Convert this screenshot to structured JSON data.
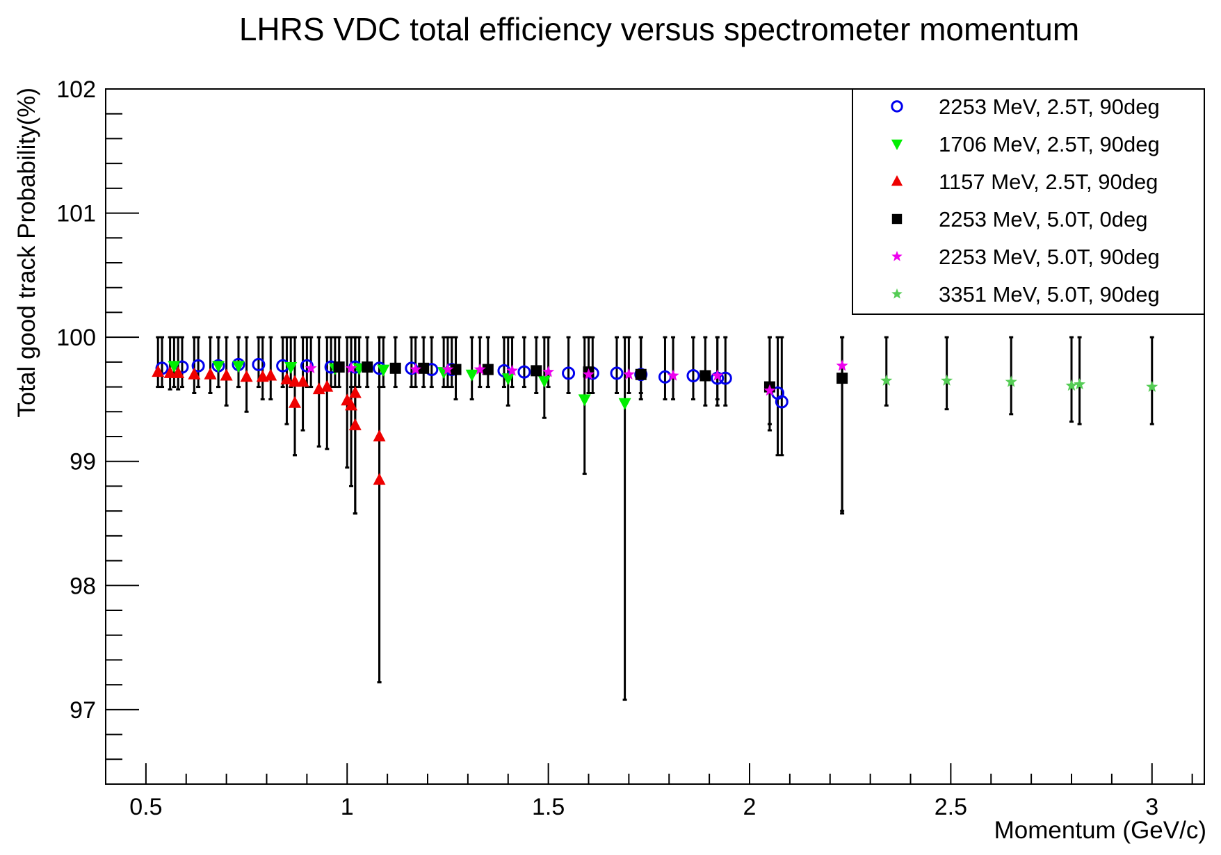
{
  "chart_data": {
    "type": "scatter",
    "title": "LHRS VDC total efficiency versus spectrometer momentum",
    "xlabel": "Momentum (GeV/c)",
    "ylabel": "Total good track Probability(%)",
    "xlim": [
      0.4,
      3.13
    ],
    "ylim": [
      96.4,
      102.0
    ],
    "x_ticks": [
      "0.5",
      "1",
      "1.5",
      "2",
      "2.5",
      "3"
    ],
    "y_ticks": [
      "97",
      "98",
      "99",
      "100",
      "101",
      "102"
    ],
    "grid": false,
    "legend_position": "top-right",
    "series": [
      {
        "name": "2253 MeV, 2.5T, 90deg",
        "marker": "open-circle",
        "color": "#0000ee",
        "points": [
          {
            "x": 0.54,
            "y": 99.75,
            "lo": 99.6,
            "hi": 100.0
          },
          {
            "x": 0.59,
            "y": 99.76,
            "lo": 99.6,
            "hi": 100.0
          },
          {
            "x": 0.63,
            "y": 99.77,
            "lo": 99.6,
            "hi": 100.0
          },
          {
            "x": 0.68,
            "y": 99.77,
            "lo": 99.6,
            "hi": 100.0
          },
          {
            "x": 0.73,
            "y": 99.78,
            "lo": 99.6,
            "hi": 100.0
          },
          {
            "x": 0.78,
            "y": 99.78,
            "lo": 99.6,
            "hi": 100.0
          },
          {
            "x": 0.84,
            "y": 99.77,
            "lo": 99.6,
            "hi": 100.0
          },
          {
            "x": 0.9,
            "y": 99.77,
            "lo": 99.6,
            "hi": 100.0
          },
          {
            "x": 0.96,
            "y": 99.76,
            "lo": 99.6,
            "hi": 100.0
          },
          {
            "x": 1.02,
            "y": 99.76,
            "lo": 99.6,
            "hi": 100.0
          },
          {
            "x": 1.08,
            "y": 99.75,
            "lo": 99.6,
            "hi": 100.0
          },
          {
            "x": 1.16,
            "y": 99.75,
            "lo": 99.6,
            "hi": 100.0
          },
          {
            "x": 1.21,
            "y": 99.74,
            "lo": 99.6,
            "hi": 100.0
          },
          {
            "x": 1.26,
            "y": 99.74,
            "lo": 99.6,
            "hi": 100.0
          },
          {
            "x": 1.39,
            "y": 99.73,
            "lo": 99.6,
            "hi": 100.0
          },
          {
            "x": 1.44,
            "y": 99.72,
            "lo": 99.6,
            "hi": 100.0
          },
          {
            "x": 1.55,
            "y": 99.71,
            "lo": 99.55,
            "hi": 100.0
          },
          {
            "x": 1.61,
            "y": 99.71,
            "lo": 99.55,
            "hi": 100.0
          },
          {
            "x": 1.67,
            "y": 99.71,
            "lo": 99.55,
            "hi": 100.0
          },
          {
            "x": 1.73,
            "y": 99.7,
            "lo": 99.55,
            "hi": 100.0
          },
          {
            "x": 1.79,
            "y": 99.68,
            "lo": 99.5,
            "hi": 100.0
          },
          {
            "x": 1.86,
            "y": 99.69,
            "lo": 99.5,
            "hi": 100.0
          },
          {
            "x": 1.92,
            "y": 99.67,
            "lo": 99.45,
            "hi": 100.0
          },
          {
            "x": 1.94,
            "y": 99.67,
            "lo": 99.45,
            "hi": 100.0
          },
          {
            "x": 2.07,
            "y": 99.55,
            "lo": 99.05,
            "hi": 100.0
          },
          {
            "x": 2.08,
            "y": 99.48,
            "lo": 99.05,
            "hi": 100.0
          }
        ]
      },
      {
        "name": "1706 MeV, 2.5T, 90deg",
        "marker": "triangle-down",
        "color": "#00ee00",
        "points": [
          {
            "x": 0.57,
            "y": 99.77,
            "lo": 99.6,
            "hi": 100.0
          },
          {
            "x": 0.68,
            "y": 99.77,
            "lo": 99.6,
            "hi": 100.0
          },
          {
            "x": 0.73,
            "y": 99.77,
            "lo": 99.6,
            "hi": 100.0
          },
          {
            "x": 0.86,
            "y": 99.76,
            "lo": 99.6,
            "hi": 100.0
          },
          {
            "x": 0.97,
            "y": 99.75,
            "lo": 99.6,
            "hi": 100.0
          },
          {
            "x": 1.03,
            "y": 99.75,
            "lo": 99.6,
            "hi": 100.0
          },
          {
            "x": 1.09,
            "y": 99.74,
            "lo": 99.6,
            "hi": 100.0
          },
          {
            "x": 1.24,
            "y": 99.72,
            "lo": 99.6,
            "hi": 100.0
          },
          {
            "x": 1.31,
            "y": 99.7,
            "lo": 99.5,
            "hi": 100.0
          },
          {
            "x": 1.4,
            "y": 99.67,
            "lo": 99.45,
            "hi": 100.0
          },
          {
            "x": 1.49,
            "y": 99.65,
            "lo": 99.35,
            "hi": 100.0
          },
          {
            "x": 1.59,
            "y": 99.5,
            "lo": 98.9,
            "hi": 100.0
          },
          {
            "x": 1.69,
            "y": 99.47,
            "lo": 97.08,
            "hi": 100.0
          }
        ]
      },
      {
        "name": "1157 MeV, 2.5T, 90deg",
        "marker": "triangle-up",
        "color": "#ee0000",
        "points": [
          {
            "x": 0.53,
            "y": 99.72,
            "lo": 99.6,
            "hi": 100.0
          },
          {
            "x": 0.56,
            "y": 99.71,
            "lo": 99.58,
            "hi": 100.0
          },
          {
            "x": 0.58,
            "y": 99.71,
            "lo": 99.58,
            "hi": 100.0
          },
          {
            "x": 0.62,
            "y": 99.7,
            "lo": 99.55,
            "hi": 100.0
          },
          {
            "x": 0.66,
            "y": 99.7,
            "lo": 99.55,
            "hi": 100.0
          },
          {
            "x": 0.7,
            "y": 99.69,
            "lo": 99.45,
            "hi": 100.0
          },
          {
            "x": 0.75,
            "y": 99.68,
            "lo": 99.4,
            "hi": 100.0
          },
          {
            "x": 0.79,
            "y": 99.68,
            "lo": 99.5,
            "hi": 100.0
          },
          {
            "x": 0.81,
            "y": 99.69,
            "lo": 99.5,
            "hi": 100.0
          },
          {
            "x": 0.85,
            "y": 99.66,
            "lo": 99.3,
            "hi": 100.0
          },
          {
            "x": 0.87,
            "y": 99.64,
            "lo": 99.05,
            "hi": 100.0
          },
          {
            "x": 0.87,
            "y": 99.47,
            "lo": 99.05,
            "hi": 100.0
          },
          {
            "x": 0.89,
            "y": 99.64,
            "lo": 99.25,
            "hi": 100.0
          },
          {
            "x": 0.93,
            "y": 99.58,
            "lo": 99.12,
            "hi": 100.0
          },
          {
            "x": 0.95,
            "y": 99.6,
            "lo": 99.1,
            "hi": 100.0
          },
          {
            "x": 1.0,
            "y": 99.49,
            "lo": 98.95,
            "hi": 100.0
          },
          {
            "x": 1.01,
            "y": 99.45,
            "lo": 98.8,
            "hi": 100.0
          },
          {
            "x": 1.02,
            "y": 99.55,
            "lo": 98.58,
            "hi": 100.0
          },
          {
            "x": 1.02,
            "y": 99.29,
            "lo": 98.58,
            "hi": 100.0
          },
          {
            "x": 1.08,
            "y": 99.2,
            "lo": 97.22,
            "hi": 100.0
          },
          {
            "x": 1.08,
            "y": 98.85,
            "lo": 97.22,
            "hi": 100.0
          }
        ]
      },
      {
        "name": "2253 MeV, 5.0T, 0deg",
        "marker": "filled-square",
        "color": "#000000",
        "points": [
          {
            "x": 0.98,
            "y": 99.76,
            "lo": 99.6,
            "hi": 100.0
          },
          {
            "x": 1.05,
            "y": 99.76,
            "lo": 99.6,
            "hi": 100.0
          },
          {
            "x": 1.12,
            "y": 99.75,
            "lo": 99.6,
            "hi": 100.0
          },
          {
            "x": 1.19,
            "y": 99.75,
            "lo": 99.6,
            "hi": 100.0
          },
          {
            "x": 1.27,
            "y": 99.74,
            "lo": 99.5,
            "hi": 100.0
          },
          {
            "x": 1.35,
            "y": 99.74,
            "lo": 99.6,
            "hi": 100.0
          },
          {
            "x": 1.47,
            "y": 99.73,
            "lo": 99.55,
            "hi": 100.0
          },
          {
            "x": 1.6,
            "y": 99.72,
            "lo": 99.55,
            "hi": 100.0
          },
          {
            "x": 1.73,
            "y": 99.7,
            "lo": 99.5,
            "hi": 100.0
          },
          {
            "x": 1.89,
            "y": 99.69,
            "lo": 99.45,
            "hi": 100.0
          },
          {
            "x": 2.05,
            "y": 99.6,
            "lo": 99.25,
            "hi": 100.0
          },
          {
            "x": 2.23,
            "y": 99.67,
            "lo": 98.58,
            "hi": 100.0
          }
        ]
      },
      {
        "name": "2253 MeV, 5.0T, 90deg",
        "marker": "star",
        "color": "#ee00ee",
        "points": [
          {
            "x": 0.91,
            "y": 99.75,
            "lo": 99.6,
            "hi": 100.0
          },
          {
            "x": 1.01,
            "y": 99.75,
            "lo": 99.6,
            "hi": 100.0
          },
          {
            "x": 1.17,
            "y": 99.74,
            "lo": 99.6,
            "hi": 100.0
          },
          {
            "x": 1.25,
            "y": 99.74,
            "lo": 99.6,
            "hi": 100.0
          },
          {
            "x": 1.33,
            "y": 99.74,
            "lo": 99.6,
            "hi": 100.0
          },
          {
            "x": 1.41,
            "y": 99.73,
            "lo": 99.6,
            "hi": 100.0
          },
          {
            "x": 1.5,
            "y": 99.72,
            "lo": 99.6,
            "hi": 100.0
          },
          {
            "x": 1.6,
            "y": 99.7,
            "lo": 99.55,
            "hi": 100.0
          },
          {
            "x": 1.7,
            "y": 99.7,
            "lo": 99.55,
            "hi": 100.0
          },
          {
            "x": 1.81,
            "y": 99.69,
            "lo": 99.5,
            "hi": 100.0
          },
          {
            "x": 1.92,
            "y": 99.69,
            "lo": 99.5,
            "hi": 100.0
          },
          {
            "x": 2.05,
            "y": 99.57,
            "lo": 99.3,
            "hi": 100.0
          },
          {
            "x": 2.23,
            "y": 99.77,
            "lo": 98.6,
            "hi": 100.0
          }
        ]
      },
      {
        "name": "3351 MeV, 5.0T, 90deg",
        "marker": "star",
        "color": "#55cc55",
        "points": [
          {
            "x": 2.34,
            "y": 99.65,
            "lo": 99.45,
            "hi": 100.0
          },
          {
            "x": 2.49,
            "y": 99.65,
            "lo": 99.42,
            "hi": 100.0
          },
          {
            "x": 2.65,
            "y": 99.64,
            "lo": 99.38,
            "hi": 100.0
          },
          {
            "x": 2.8,
            "y": 99.61,
            "lo": 99.32,
            "hi": 100.0
          },
          {
            "x": 2.82,
            "y": 99.62,
            "lo": 99.3,
            "hi": 100.0
          },
          {
            "x": 3.0,
            "y": 99.6,
            "lo": 99.3,
            "hi": 100.0
          }
        ]
      }
    ]
  }
}
